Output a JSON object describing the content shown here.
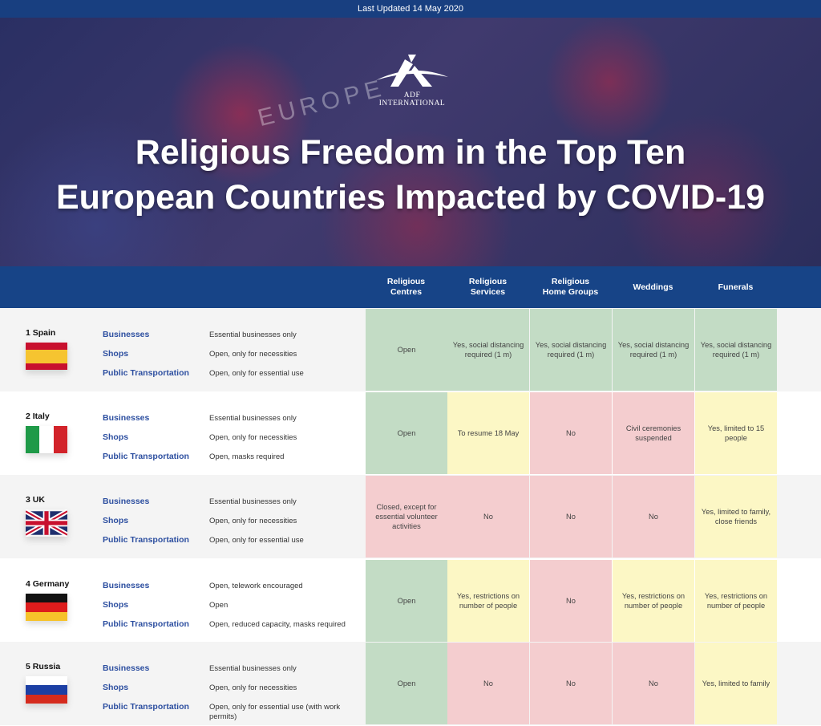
{
  "top_bar": "Last Updated 14 May 2020",
  "hero": {
    "map_label": "EUROPE",
    "logo_text": "ADF INTERNATIONAL",
    "title_line1": "Religious Freedom in the Top Ten",
    "title_line2": "European Countries Impacted by COVID-19"
  },
  "columns": [
    "Religious\nCentres",
    "Religious\nServices",
    "Religious\nHome Groups",
    "Weddings",
    "Funerals"
  ],
  "categories": [
    "Businesses",
    "Shops",
    "Public Transportation"
  ],
  "colors": {
    "green": "#c3dcc5",
    "yellow": "#fcf7c5",
    "red": "#f4cdcf",
    "header": "#174487"
  },
  "countries": [
    {
      "name": "1 Spain",
      "flag": "spain",
      "info": [
        "Essential businesses only",
        "Open, only for necessities",
        "Open, only for essential use"
      ],
      "cells": [
        {
          "text": "Open",
          "status": "g"
        },
        {
          "text": "Yes, social distancing required (1 m)",
          "status": "g"
        },
        {
          "text": "Yes, social distancing required (1 m)",
          "status": "g"
        },
        {
          "text": "Yes, social distancing required (1 m)",
          "status": "g"
        },
        {
          "text": "Yes, social distancing required (1 m)",
          "status": "g"
        }
      ]
    },
    {
      "name": "2 Italy",
      "flag": "italy",
      "info": [
        "Essential businesses only",
        "Open, only for necessities",
        "Open, masks required"
      ],
      "cells": [
        {
          "text": "Open",
          "status": "g"
        },
        {
          "text": "To resume 18 May",
          "status": "y"
        },
        {
          "text": "No",
          "status": "p"
        },
        {
          "text": "Civil ceremonies suspended",
          "status": "p"
        },
        {
          "text": "Yes, limited to 15 people",
          "status": "y"
        }
      ]
    },
    {
      "name": "3 UK",
      "flag": "uk",
      "info": [
        "Essential businesses only",
        "Open, only for necessities",
        "Open, only for essential use"
      ],
      "cells": [
        {
          "text": "Closed, except for essential volunteer activities",
          "status": "p"
        },
        {
          "text": "No",
          "status": "p"
        },
        {
          "text": "No",
          "status": "p"
        },
        {
          "text": "No",
          "status": "p"
        },
        {
          "text": "Yes, limited to family, close friends",
          "status": "y"
        }
      ]
    },
    {
      "name": "4 Germany",
      "flag": "germany",
      "info": [
        "Open, telework encouraged",
        "Open",
        "Open, reduced capacity, masks required"
      ],
      "cells": [
        {
          "text": "Open",
          "status": "g"
        },
        {
          "text": "Yes, restrictions on number of people",
          "status": "y"
        },
        {
          "text": "No",
          "status": "p"
        },
        {
          "text": "Yes, restrictions on number of people",
          "status": "y"
        },
        {
          "text": "Yes, restrictions on number of people",
          "status": "y"
        }
      ]
    },
    {
      "name": "5 Russia",
      "flag": "russia",
      "info": [
        "Essential businesses only",
        "Open, only for necessities",
        "Open, only for essential use (with work permits)"
      ],
      "cells": [
        {
          "text": "Open",
          "status": "g"
        },
        {
          "text": "No",
          "status": "p"
        },
        {
          "text": "No",
          "status": "p"
        },
        {
          "text": "No",
          "status": "p"
        },
        {
          "text": "Yes, limited to family",
          "status": "y"
        }
      ]
    }
  ]
}
